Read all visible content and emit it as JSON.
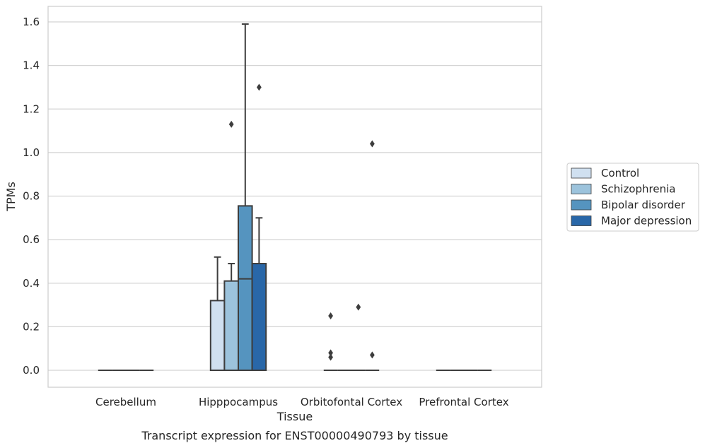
{
  "chart_data": {
    "type": "box",
    "caption": "Transcript expression for ENST00000490793 by tissue",
    "xlabel": "Tissue",
    "ylabel": "TPMs",
    "ylim": [
      -0.08,
      1.67
    ],
    "yticks": [
      0.0,
      0.2,
      0.4,
      0.6,
      0.8,
      1.0,
      1.2,
      1.4,
      1.6
    ],
    "ytick_labels": [
      "0.0",
      "0.2",
      "0.4",
      "0.6",
      "0.8",
      "1.0",
      "1.2",
      "1.4",
      "1.6"
    ],
    "grid": true,
    "legend_position": "right-outside",
    "categories": [
      "Cerebellum",
      "Hipppocampus",
      "Orbitofontal Cortex",
      "Prefrontal Cortex"
    ],
    "series": [
      {
        "name": "Control",
        "color": "#d0e0f0",
        "boxes": [
          {
            "q1": 0,
            "median": 0,
            "q3": 0,
            "whisker_low": 0,
            "whisker_high": 0,
            "outliers": []
          },
          {
            "q1": 0,
            "median": 0,
            "q3": 0.32,
            "whisker_low": 0,
            "whisker_high": 0.52,
            "outliers": []
          },
          {
            "q1": 0,
            "median": 0,
            "q3": 0,
            "whisker_low": 0,
            "whisker_high": 0,
            "outliers": [
              0.25,
              0.08,
              0.06
            ]
          },
          {
            "q1": 0,
            "median": 0,
            "q3": 0,
            "whisker_low": 0,
            "whisker_high": 0,
            "outliers": []
          }
        ]
      },
      {
        "name": "Schizophrenia",
        "color": "#9cc3dc",
        "boxes": [
          {
            "q1": 0,
            "median": 0,
            "q3": 0,
            "whisker_low": 0,
            "whisker_high": 0,
            "outliers": []
          },
          {
            "q1": 0,
            "median": 0,
            "q3": 0.41,
            "whisker_low": 0,
            "whisker_high": 0.49,
            "outliers": [
              1.13
            ]
          },
          {
            "q1": 0,
            "median": 0,
            "q3": 0,
            "whisker_low": 0,
            "whisker_high": 0,
            "outliers": []
          },
          {
            "q1": 0,
            "median": 0,
            "q3": 0,
            "whisker_low": 0,
            "whisker_high": 0,
            "outliers": []
          }
        ]
      },
      {
        "name": "Bipolar disorder",
        "color": "#5594bf",
        "boxes": [
          {
            "q1": 0,
            "median": 0,
            "q3": 0,
            "whisker_low": 0,
            "whisker_high": 0,
            "outliers": []
          },
          {
            "q1": 0,
            "median": 0.42,
            "q3": 0.755,
            "whisker_low": 0,
            "whisker_high": 1.59,
            "outliers": []
          },
          {
            "q1": 0,
            "median": 0,
            "q3": 0,
            "whisker_low": 0,
            "whisker_high": 0,
            "outliers": [
              0.29
            ]
          },
          {
            "q1": 0,
            "median": 0,
            "q3": 0,
            "whisker_low": 0,
            "whisker_high": 0,
            "outliers": []
          }
        ]
      },
      {
        "name": "Major depression",
        "color": "#2967a8",
        "boxes": [
          {
            "q1": 0,
            "median": 0,
            "q3": 0,
            "whisker_low": 0,
            "whisker_high": 0,
            "outliers": []
          },
          {
            "q1": 0,
            "median": 0,
            "q3": 0.49,
            "whisker_low": 0,
            "whisker_high": 0.7,
            "outliers": [
              1.3
            ]
          },
          {
            "q1": 0,
            "median": 0,
            "q3": 0,
            "whisker_low": 0,
            "whisker_high": 0,
            "outliers": [
              1.04,
              0.07
            ]
          },
          {
            "q1": 0,
            "median": 0,
            "q3": 0,
            "whisker_low": 0,
            "whisker_high": 0,
            "outliers": []
          }
        ]
      }
    ]
  }
}
